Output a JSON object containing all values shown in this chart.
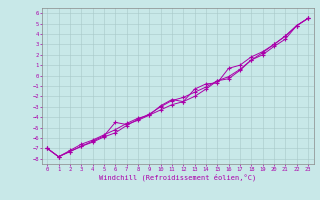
{
  "xlabel": "Windchill (Refroidissement éolien,°C)",
  "ylabel": "",
  "bg_color": "#c8e8e8",
  "grid_color": "#a8c8c8",
  "line_color": "#aa00aa",
  "xlim": [
    -0.5,
    23.5
  ],
  "ylim": [
    -8.5,
    6.5
  ],
  "xticks": [
    0,
    1,
    2,
    3,
    4,
    5,
    6,
    7,
    8,
    9,
    10,
    11,
    12,
    13,
    14,
    15,
    16,
    17,
    18,
    19,
    20,
    21,
    22,
    23
  ],
  "yticks": [
    6,
    5,
    4,
    3,
    2,
    1,
    0,
    -1,
    -2,
    -3,
    -4,
    -5,
    -6,
    -7,
    -8
  ],
  "line1_x": [
    0,
    1,
    2,
    3,
    4,
    5,
    6,
    7,
    8,
    9,
    10,
    11,
    12,
    13,
    14,
    15,
    16,
    17,
    18,
    19,
    20,
    21,
    22,
    23
  ],
  "line1_y": [
    -7.0,
    -7.8,
    -7.3,
    -6.8,
    -6.3,
    -5.8,
    -4.5,
    -4.7,
    -4.3,
    -3.8,
    -3.3,
    -2.8,
    -2.5,
    -2.0,
    -1.3,
    -0.5,
    -0.3,
    0.5,
    1.5,
    2.0,
    2.8,
    3.5,
    4.8,
    5.5
  ],
  "line2_x": [
    0,
    1,
    2,
    3,
    4,
    5,
    6,
    7,
    8,
    9,
    10,
    11,
    12,
    13,
    14,
    15,
    16,
    17,
    18,
    19,
    20,
    21,
    22,
    23
  ],
  "line2_y": [
    -7.0,
    -7.8,
    -7.2,
    -6.6,
    -6.2,
    -5.7,
    -5.2,
    -4.6,
    -4.1,
    -3.8,
    -2.9,
    -2.3,
    -2.5,
    -1.3,
    -0.8,
    -0.7,
    0.7,
    1.0,
    1.8,
    2.3,
    3.0,
    3.8,
    4.8,
    5.5
  ],
  "line3_x": [
    0,
    1,
    2,
    3,
    4,
    5,
    6,
    7,
    8,
    9,
    10,
    11,
    12,
    13,
    14,
    15,
    16,
    17,
    18,
    19,
    20,
    21,
    22,
    23
  ],
  "line3_y": [
    -7.0,
    -7.8,
    -7.3,
    -6.8,
    -6.4,
    -5.9,
    -5.5,
    -4.8,
    -4.2,
    -3.7,
    -3.0,
    -2.4,
    -2.1,
    -1.6,
    -1.1,
    -0.5,
    -0.1,
    0.6,
    1.5,
    2.2,
    3.0,
    3.8,
    4.8,
    5.5
  ],
  "tick_fontsize": 4.0,
  "xlabel_fontsize": 5.0
}
